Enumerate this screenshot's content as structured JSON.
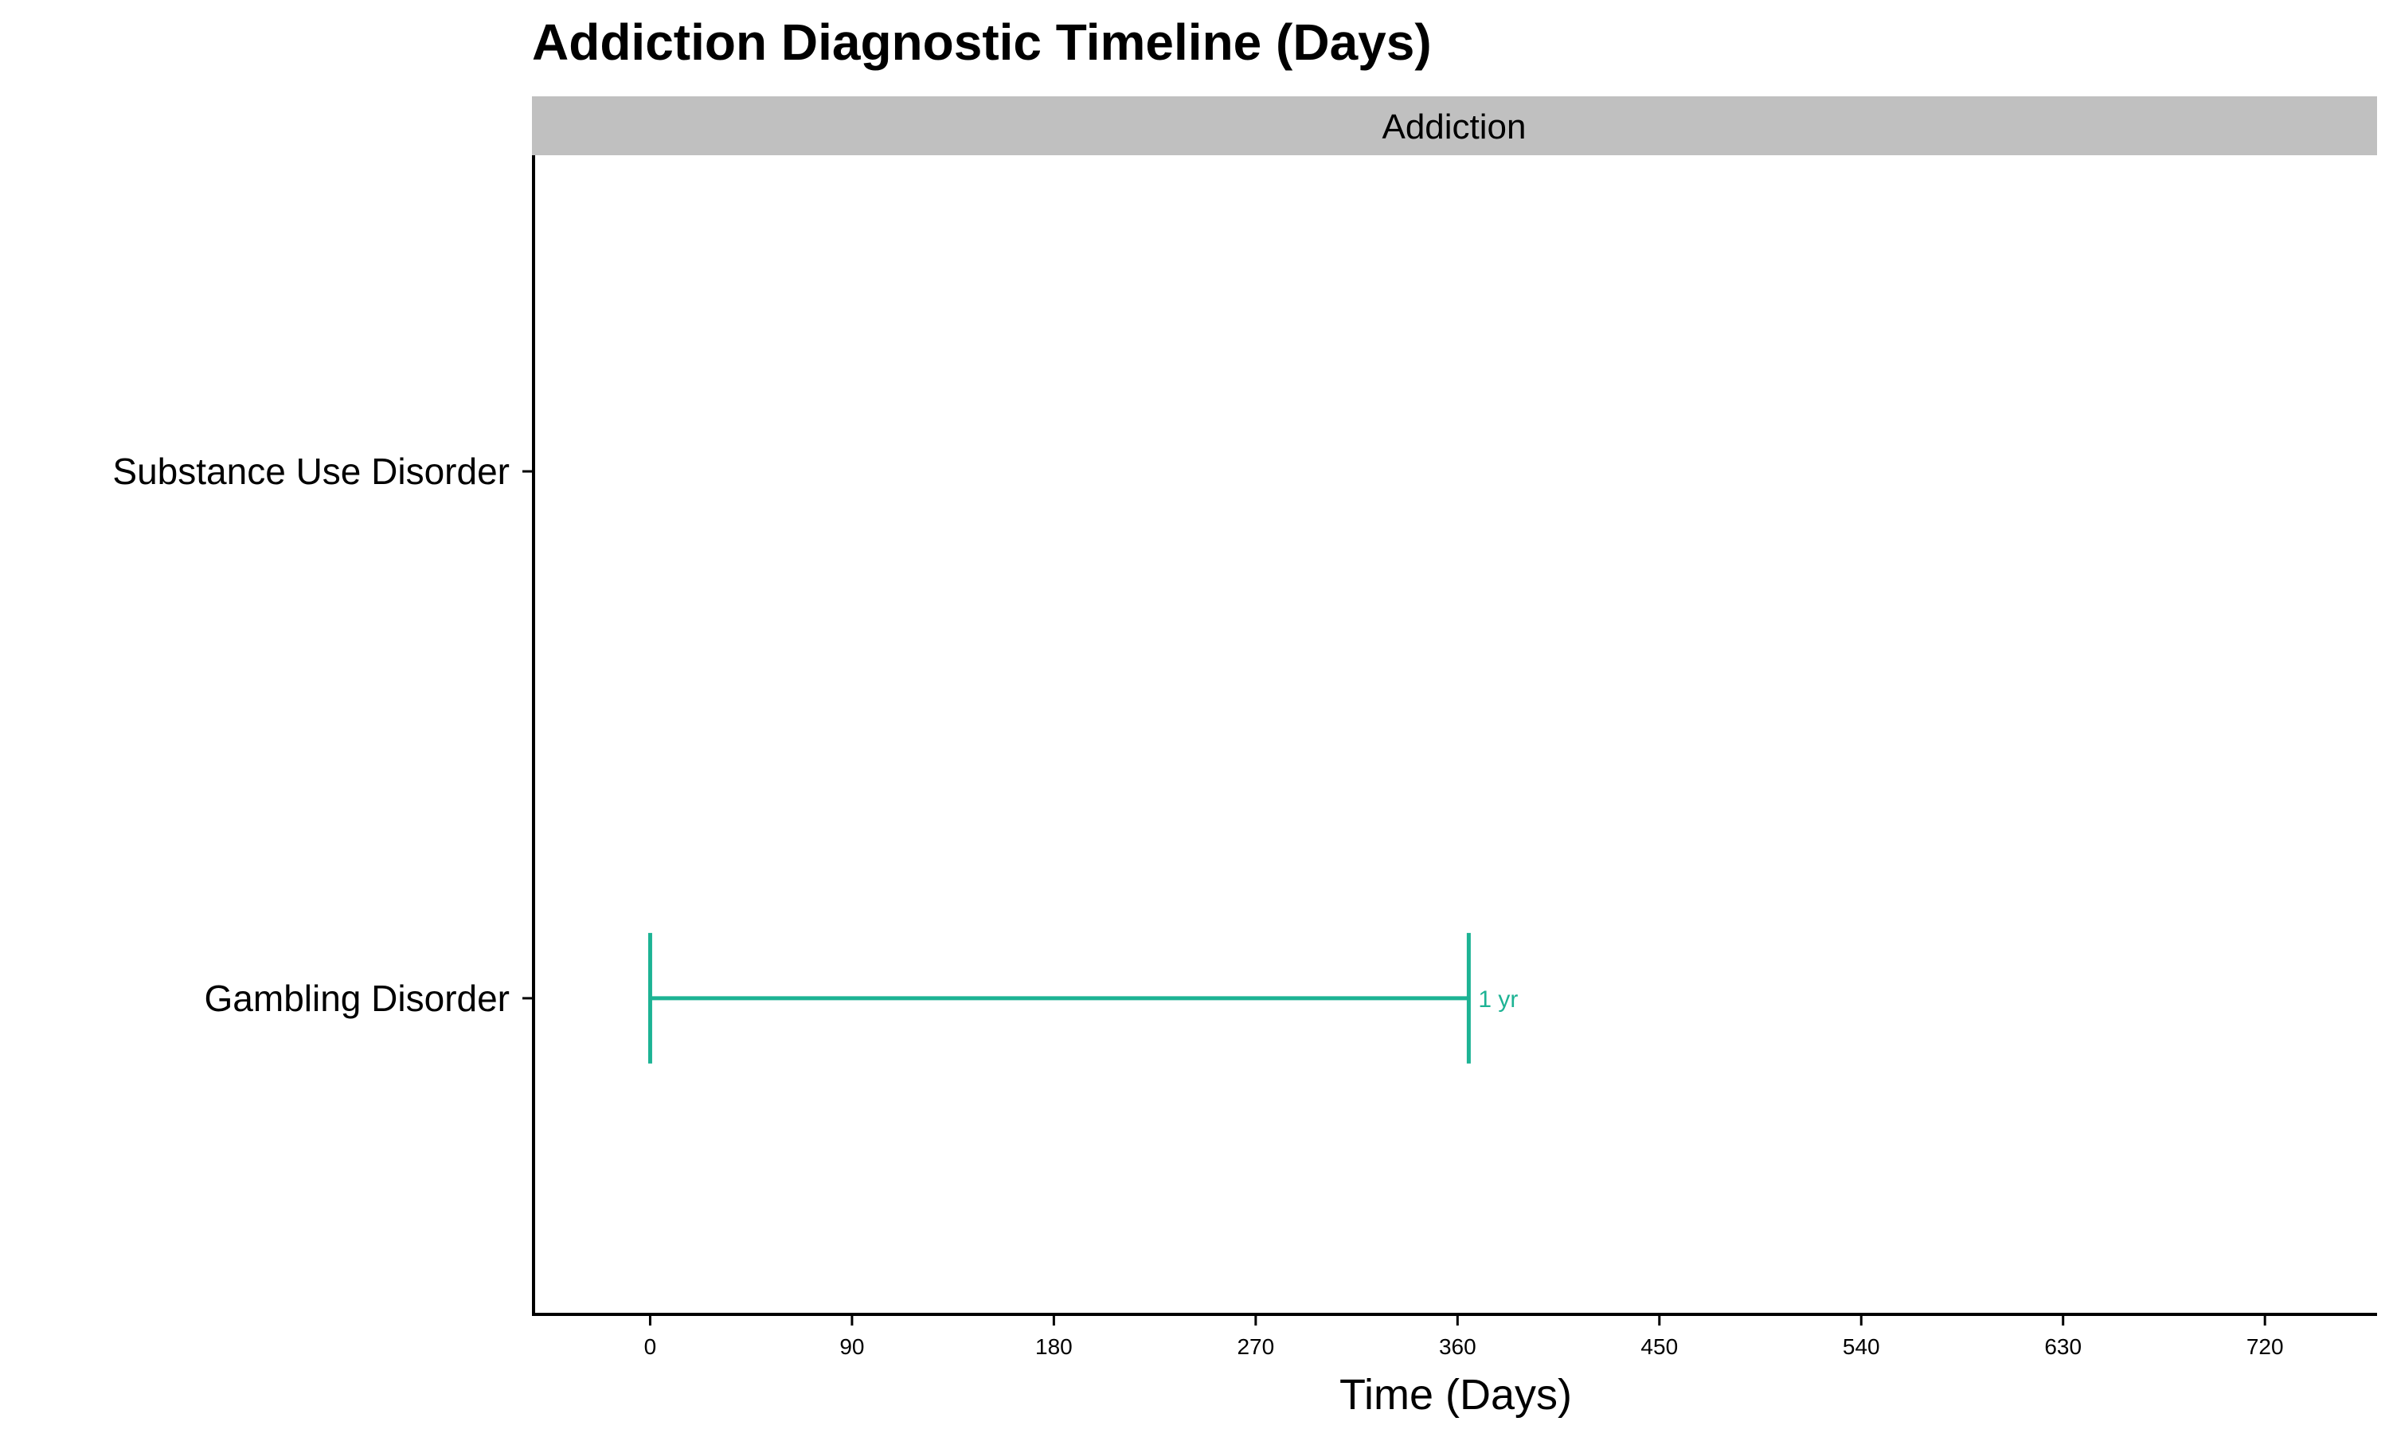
{
  "chart_data": {
    "type": "timeline",
    "title": "Addiction Diagnostic Timeline (Days)",
    "facet": "Addiction",
    "xlabel": "Time (Days)",
    "ylabel": "",
    "xlim": [
      -52,
      770
    ],
    "xticks": [
      0,
      90,
      180,
      270,
      360,
      450,
      540,
      630,
      720
    ],
    "categories": [
      "Substance Use Disorder",
      "Gambling Disorder"
    ],
    "series": [
      {
        "category": "Gambling Disorder",
        "start": 0,
        "end": 365,
        "label": "1 yr",
        "color": "#1db394"
      }
    ],
    "grid": false,
    "legend": "none"
  },
  "colors": {
    "strip_bg": "#c0c0c0",
    "axis": "#000000"
  }
}
